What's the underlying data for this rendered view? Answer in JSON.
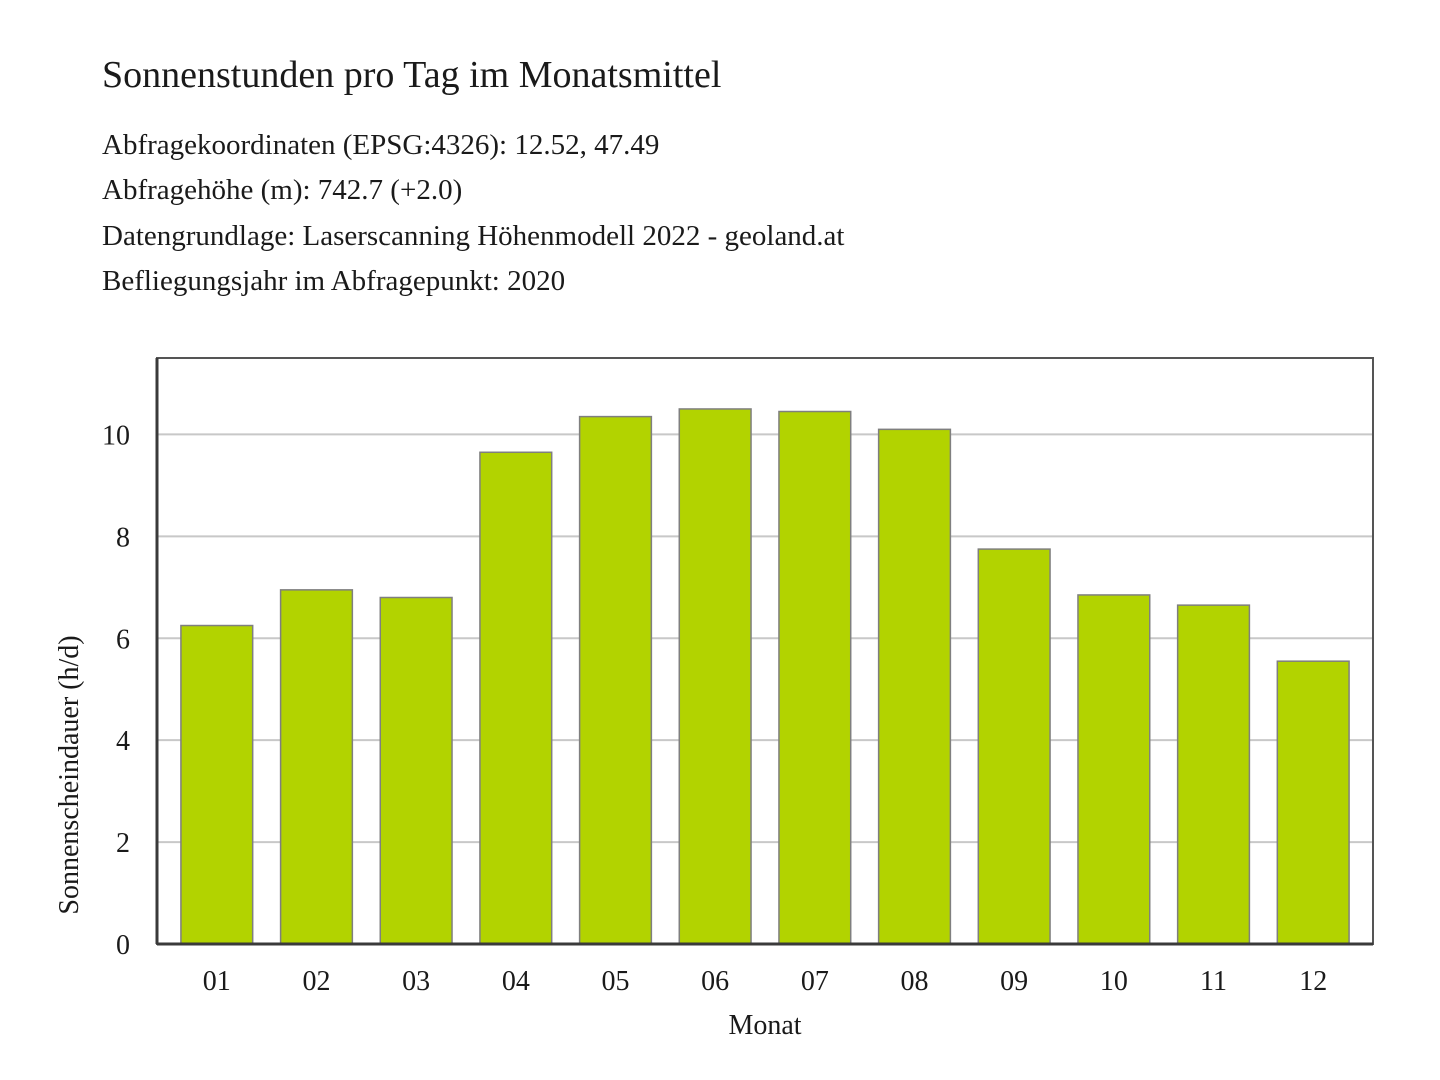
{
  "header": {
    "title": "Sonnenstunden pro Tag im Monatsmittel",
    "info_lines": [
      "Abfragekoordinaten (EPSG:4326): 12.52, 47.49",
      "Abfragehöhe (m): 742.7 (+2.0)",
      "Datengrundlage: Laserscanning Höhenmodell 2022 - geoland.at",
      "Befliegungsjahr im Abfragepunkt: 2020"
    ]
  },
  "chart_data": {
    "type": "bar",
    "title": "Sonnenstunden pro Tag im Monatsmittel",
    "xlabel": "Monat",
    "ylabel": "Sonnenscheindauer (h/d)",
    "categories": [
      "01",
      "02",
      "03",
      "04",
      "05",
      "06",
      "07",
      "08",
      "09",
      "10",
      "11",
      "12"
    ],
    "values": [
      6.25,
      6.95,
      6.8,
      9.65,
      10.35,
      10.5,
      10.45,
      10.1,
      7.75,
      6.85,
      6.65,
      5.55
    ],
    "ylim": [
      0,
      11.5
    ],
    "yticks": [
      0,
      2,
      4,
      6,
      8,
      10
    ],
    "grid": "horizontal",
    "legend": "none",
    "colors": {
      "bar_fill": "#b2d300",
      "bar_stroke": "#7f7f7f",
      "grid": "#c8c8c8",
      "axis": "#3a3a3a",
      "frame": "#555555"
    }
  }
}
